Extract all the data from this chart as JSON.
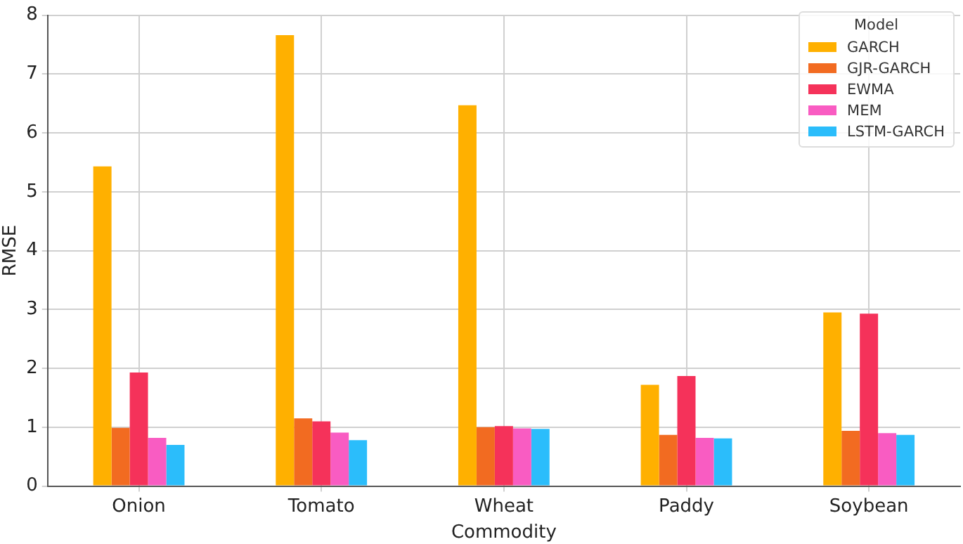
{
  "chart_data": {
    "type": "bar",
    "xlabel": "Commodity",
    "ylabel": "RMSE",
    "legend_title": "Model",
    "categories": [
      "Onion",
      "Tomato",
      "Wheat",
      "Paddy",
      "Soybean"
    ],
    "series": [
      {
        "name": "GARCH",
        "color": "#ffb000",
        "values": [
          5.43,
          7.66,
          6.47,
          1.72,
          2.95
        ]
      },
      {
        "name": "GJR-GARCH",
        "color": "#f26b21",
        "values": [
          0.99,
          1.15,
          1.0,
          0.87,
          0.94
        ]
      },
      {
        "name": "EWMA",
        "color": "#f5325a",
        "values": [
          1.93,
          1.1,
          1.02,
          1.87,
          2.93
        ]
      },
      {
        "name": "MEM",
        "color": "#f95cc2",
        "values": [
          0.82,
          0.91,
          0.98,
          0.82,
          0.9
        ]
      },
      {
        "name": "LSTM-GARCH",
        "color": "#2bbdfb",
        "values": [
          0.7,
          0.78,
          0.97,
          0.81,
          0.87
        ]
      }
    ],
    "ylim": [
      0,
      8
    ],
    "yticks": [
      0,
      1,
      2,
      3,
      4,
      5,
      6,
      7,
      8
    ],
    "grid": true,
    "legend": "top right"
  }
}
